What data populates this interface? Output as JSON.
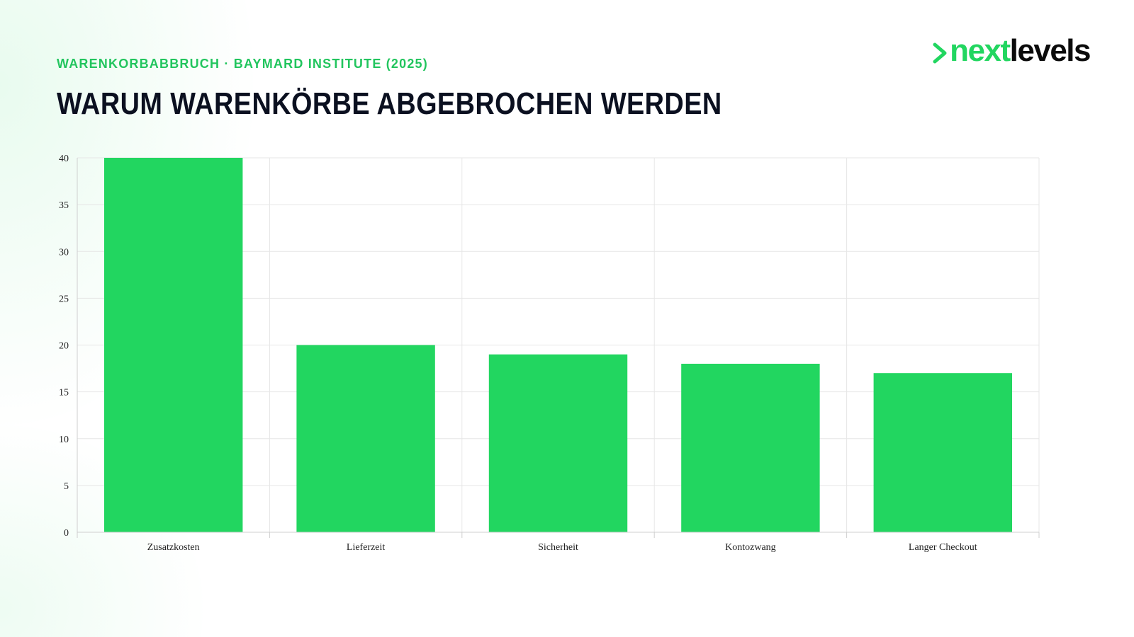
{
  "header": {
    "kicker": "WARENKORBABBRUCH · BAYMARD INSTITUTE (2025)",
    "title": "WARUM WARENKÖRBE ABGEBROCHEN WERDEN"
  },
  "logo": {
    "part1": "next",
    "part2": "levels",
    "icon": "chevron-right-icon"
  },
  "colors": {
    "accent": "#22d660",
    "kicker": "#22c55e",
    "title": "#0b1020",
    "grid": "#e6e6e6"
  },
  "chart_data": {
    "type": "bar",
    "categories": [
      "Zusatzkosten",
      "Lieferzeit",
      "Sicherheit",
      "Kontozwang",
      "Langer Checkout"
    ],
    "values": [
      40,
      20,
      19,
      18,
      17
    ],
    "title": "",
    "xlabel": "",
    "ylabel": "",
    "ylim": [
      0,
      40
    ],
    "yticks": [
      0,
      5,
      10,
      15,
      20,
      25,
      30,
      35,
      40
    ],
    "grid": true,
    "legend": "none",
    "bar_color": "#22d660"
  }
}
